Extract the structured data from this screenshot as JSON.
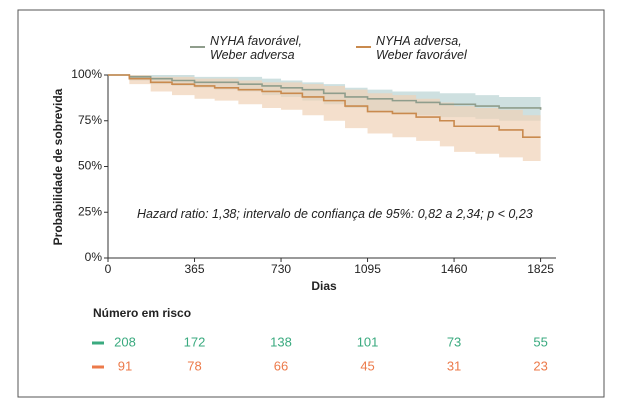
{
  "chart_data": {
    "type": "step",
    "ylabel": "Probabilidade de sobrevida",
    "xlabel": "Dias",
    "x": [
      0,
      90,
      180,
      270,
      365,
      450,
      550,
      650,
      730,
      820,
      910,
      1000,
      1095,
      1200,
      1300,
      1400,
      1460,
      1550,
      1650,
      1750,
      1825
    ],
    "series": [
      {
        "name": "NYHA favorável, Weber adversa",
        "color": "#8f9d8c",
        "band_color": "#b9d3d3",
        "values": [
          100,
          99,
          98,
          97,
          96,
          96,
          95,
          94,
          93,
          92,
          90,
          88,
          87,
          86,
          85,
          84,
          84,
          83,
          82,
          82,
          81
        ],
        "lower": [
          100,
          97,
          95,
          94,
          93,
          92,
          91,
          89,
          88,
          86,
          84,
          82,
          80,
          79,
          78,
          77,
          77,
          76,
          75,
          75,
          74
        ],
        "upper": [
          100,
          100,
          100,
          100,
          99,
          99,
          99,
          98,
          97,
          96,
          95,
          93,
          92,
          91,
          91,
          90,
          90,
          89,
          88,
          88,
          87
        ]
      },
      {
        "name": "NYHA adversa, Weber favorável",
        "color": "#c98a4e",
        "band_color": "#f0d2b6",
        "values": [
          100,
          98,
          96,
          95,
          94,
          93,
          92,
          91,
          90,
          88,
          86,
          83,
          80,
          79,
          77,
          75,
          72,
          72,
          70,
          66,
          66
        ],
        "lower": [
          100,
          95,
          91,
          89,
          87,
          86,
          84,
          82,
          81,
          78,
          75,
          71,
          68,
          66,
          64,
          61,
          58,
          57,
          55,
          53,
          53
        ],
        "upper": [
          100,
          100,
          99,
          99,
          98,
          98,
          97,
          96,
          96,
          95,
          94,
          92,
          90,
          89,
          87,
          85,
          83,
          82,
          81,
          78,
          78
        ]
      }
    ],
    "xlim": [
      0,
      1890
    ],
    "xticks": [
      0,
      365,
      730,
      1095,
      1460,
      1825
    ],
    "ylim": [
      0,
      100
    ],
    "yticks": [
      {
        "value": 0,
        "label": "0%"
      },
      {
        "value": 25,
        "label": "25%"
      },
      {
        "value": 50,
        "label": "50%"
      },
      {
        "value": 75,
        "label": "75%"
      },
      {
        "value": 100,
        "label": "100%"
      }
    ],
    "annotation": "Hazard ratio: 1,38; intervalo de confiança de 95%: 0,82 a 2,34; p < 0,23",
    "risk_table": {
      "title": "Número em risco",
      "rows": [
        {
          "color": "#3aaa7f",
          "values": [
            208,
            172,
            138,
            101,
            73,
            55
          ]
        },
        {
          "color": "#ec7a4a",
          "values": [
            91,
            78,
            66,
            45,
            31,
            23
          ]
        }
      ]
    }
  }
}
